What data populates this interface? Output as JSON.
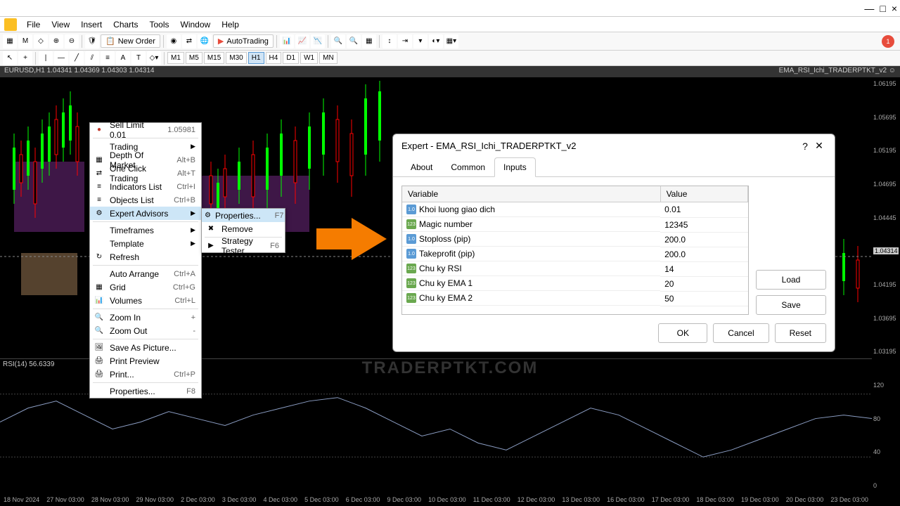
{
  "window": {
    "minimize": "—",
    "maximize": "□",
    "close": "×"
  },
  "menu": {
    "items": [
      "File",
      "View",
      "Insert",
      "Charts",
      "Tools",
      "Window",
      "Help"
    ]
  },
  "toolbar": {
    "neworder": "New Order",
    "autotrade": "AutoTrading",
    "notif_count": "1"
  },
  "timeframes": [
    "M1",
    "M5",
    "M15",
    "M30",
    "H1",
    "H4",
    "D1",
    "W1",
    "MN"
  ],
  "timeframe_active": "H1",
  "chart_header": {
    "left": "EURUSD,H1 1.04341 1.04369 1.04303 1.04314",
    "right": "EMA_RSI_Ichi_TRADERPTKT_v2 ☺"
  },
  "rsi_label": "RSI(14) 56.6339",
  "time_axis": [
    "18 Nov 2024",
    "27 Nov 03:00",
    "28 Nov 03:00",
    "29 Nov 03:00",
    "2 Dec 03:00",
    "3 Dec 03:00",
    "4 Dec 03:00",
    "5 Dec 03:00",
    "6 Dec 03:00",
    "9 Dec 03:00",
    "10 Dec 03:00",
    "11 Dec 03:00",
    "12 Dec 03:00",
    "13 Dec 03:00",
    "16 Dec 03:00",
    "17 Dec 03:00",
    "18 Dec 03:00",
    "19 Dec 03:00",
    "20 Dec 03:00",
    "23 Dec 03:00"
  ],
  "price_axis": [
    "1.06195",
    "1.05695",
    "1.05195",
    "1.04695",
    "1.04445",
    "1.04314",
    "1.04195",
    "1.03695",
    "1.03195"
  ],
  "price_current_idx": 5,
  "rsi_axis": [
    "120",
    "80",
    "40",
    "0"
  ],
  "ctx_main": [
    {
      "type": "item",
      "icon": "●",
      "label": "Sell Limit 0.01",
      "shortcut": "1.05981",
      "color": "#c0392b"
    },
    {
      "type": "sep"
    },
    {
      "type": "item",
      "icon": "",
      "label": "Trading",
      "arrow": "▶"
    },
    {
      "type": "item",
      "icon": "▦",
      "label": "Depth Of Market",
      "shortcut": "Alt+B"
    },
    {
      "type": "item",
      "icon": "⇄",
      "label": "One Click Trading",
      "shortcut": "Alt+T"
    },
    {
      "type": "item",
      "icon": "≡",
      "label": "Indicators List",
      "shortcut": "Ctrl+I"
    },
    {
      "type": "item",
      "icon": "≡",
      "label": "Objects List",
      "shortcut": "Ctrl+B"
    },
    {
      "type": "item",
      "icon": "⚙",
      "label": "Expert Advisors",
      "arrow": "▶",
      "highlight": true
    },
    {
      "type": "sep"
    },
    {
      "type": "item",
      "icon": "",
      "label": "Timeframes",
      "arrow": "▶"
    },
    {
      "type": "item",
      "icon": "",
      "label": "Template",
      "arrow": "▶"
    },
    {
      "type": "item",
      "icon": "↻",
      "label": "Refresh"
    },
    {
      "type": "sep"
    },
    {
      "type": "item",
      "icon": "",
      "label": "Auto Arrange",
      "shortcut": "Ctrl+A"
    },
    {
      "type": "item",
      "icon": "▦",
      "label": "Grid",
      "shortcut": "Ctrl+G"
    },
    {
      "type": "item",
      "icon": "📊",
      "label": "Volumes",
      "shortcut": "Ctrl+L"
    },
    {
      "type": "sep"
    },
    {
      "type": "item",
      "icon": "🔍",
      "label": "Zoom In",
      "shortcut": "+"
    },
    {
      "type": "item",
      "icon": "🔍",
      "label": "Zoom Out",
      "shortcut": "-"
    },
    {
      "type": "sep"
    },
    {
      "type": "item",
      "icon": "🖼",
      "label": "Save As Picture..."
    },
    {
      "type": "item",
      "icon": "🖨",
      "label": "Print Preview"
    },
    {
      "type": "item",
      "icon": "🖨",
      "label": "Print...",
      "shortcut": "Ctrl+P"
    },
    {
      "type": "sep"
    },
    {
      "type": "item",
      "icon": "",
      "label": "Properties...",
      "shortcut": "F8"
    }
  ],
  "ctx_sub": [
    {
      "icon": "⚙",
      "label": "Properties...",
      "shortcut": "F7",
      "highlight": true
    },
    {
      "icon": "✖",
      "label": "Remove"
    },
    {
      "icon": "▶",
      "label": "Strategy Tester",
      "shortcut": "F6"
    }
  ],
  "dialog": {
    "title": "Expert - EMA_RSI_Ichi_TRADERPTKT_v2",
    "tabs": [
      "About",
      "Common",
      "Inputs"
    ],
    "tab_active": "Inputs",
    "headers": {
      "variable": "Variable",
      "value": "Value"
    },
    "rows": [
      {
        "icon": "dbl",
        "var": "Khoi luong giao dich",
        "val": "0.01"
      },
      {
        "icon": "int",
        "var": "Magic number",
        "val": "12345"
      },
      {
        "icon": "dbl",
        "var": "Stoploss (pip)",
        "val": "200.0"
      },
      {
        "icon": "dbl",
        "var": "Takeprofit (pip)",
        "val": "200.0"
      },
      {
        "icon": "int",
        "var": "Chu ky RSI",
        "val": "14"
      },
      {
        "icon": "int",
        "var": "Chu ky EMA 1",
        "val": "20"
      },
      {
        "icon": "int",
        "var": "Chu ky EMA 2",
        "val": "50"
      }
    ],
    "buttons": {
      "load": "Load",
      "save": "Save",
      "ok": "OK",
      "cancel": "Cancel",
      "reset": "Reset"
    }
  },
  "watermark": "TRADERPTKT.COM",
  "colors": {
    "arrow": "#f57c00",
    "highlight": "#cde6f7",
    "candle_up": "#00ff00",
    "candle_down": "#ff0000",
    "ichimoku": "#7b2d8e"
  }
}
